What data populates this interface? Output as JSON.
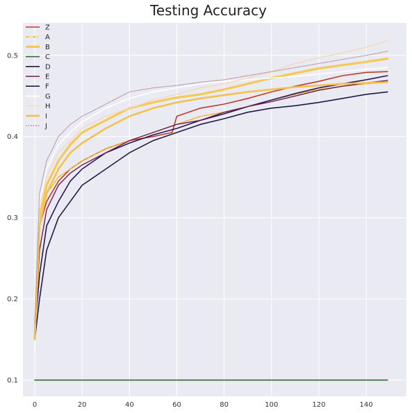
{
  "chart_data": {
    "type": "line",
    "title": "Testing Accuracy",
    "xlabel": "",
    "ylabel": "",
    "xlim": [
      -5,
      157
    ],
    "ylim": [
      0.08,
      0.54
    ],
    "xticks": [
      0,
      20,
      40,
      60,
      80,
      100,
      120,
      140
    ],
    "yticks": [
      0.1,
      0.2,
      0.3,
      0.4,
      0.5
    ],
    "grid": true,
    "legend_position": "top-left",
    "series": [
      {
        "name": "Z",
        "color": "#c0392b",
        "width": 1.6,
        "dash": "",
        "x": [
          0,
          2,
          5,
          10,
          15,
          20,
          30,
          40,
          50,
          58,
          60,
          70,
          80,
          90,
          100,
          110,
          120,
          130,
          140,
          149
        ],
        "y": [
          0.16,
          0.29,
          0.32,
          0.345,
          0.36,
          0.37,
          0.385,
          0.395,
          0.4,
          0.405,
          0.425,
          0.435,
          0.44,
          0.447,
          0.455,
          0.462,
          0.468,
          0.475,
          0.479,
          0.48
        ]
      },
      {
        "name": "A",
        "color": "#f0b429",
        "width": 1.6,
        "dash": "5,2,1,2",
        "x": [
          0,
          2,
          5,
          10,
          15,
          20,
          30,
          40,
          50,
          60,
          70,
          80,
          90,
          100,
          110,
          120,
          130,
          140,
          149
        ],
        "y": [
          0.15,
          0.3,
          0.33,
          0.35,
          0.36,
          0.37,
          0.385,
          0.395,
          0.405,
          0.415,
          0.425,
          0.43,
          0.437,
          0.445,
          0.452,
          0.458,
          0.462,
          0.465,
          0.467
        ]
      },
      {
        "name": "B",
        "color": "#f5c956",
        "width": 3.2,
        "dash": "",
        "x": [
          0,
          2,
          5,
          10,
          15,
          20,
          30,
          40,
          50,
          60,
          70,
          80,
          90,
          100,
          110,
          120,
          130,
          140,
          149
        ],
        "y": [
          0.15,
          0.3,
          0.34,
          0.37,
          0.39,
          0.405,
          0.42,
          0.435,
          0.442,
          0.448,
          0.452,
          0.458,
          0.465,
          0.472,
          0.478,
          0.484,
          0.488,
          0.492,
          0.496
        ]
      },
      {
        "name": "C",
        "color": "#2e6b35",
        "width": 1.6,
        "dash": "",
        "x": [
          0,
          149
        ],
        "y": [
          0.1,
          0.1
        ]
      },
      {
        "name": "D",
        "color": "#2a1458",
        "width": 1.6,
        "dash": "",
        "x": [
          0,
          2,
          5,
          10,
          15,
          20,
          30,
          40,
          50,
          60,
          70,
          80,
          90,
          100,
          110,
          120,
          130,
          140,
          149
        ],
        "y": [
          0.16,
          0.23,
          0.29,
          0.32,
          0.345,
          0.36,
          0.38,
          0.392,
          0.402,
          0.41,
          0.42,
          0.428,
          0.437,
          0.445,
          0.453,
          0.46,
          0.465,
          0.47,
          0.475
        ]
      },
      {
        "name": "E",
        "color": "#6b1f4a",
        "width": 1.4,
        "dash": "",
        "x": [
          0,
          2,
          5,
          10,
          15,
          20,
          30,
          40,
          50,
          60,
          70,
          80,
          90,
          100,
          110,
          120,
          130,
          140,
          149
        ],
        "y": [
          0.16,
          0.26,
          0.31,
          0.34,
          0.355,
          0.365,
          0.38,
          0.395,
          0.405,
          0.415,
          0.42,
          0.43,
          0.437,
          0.443,
          0.45,
          0.457,
          0.462,
          0.466,
          0.469
        ]
      },
      {
        "name": "F",
        "color": "#1d1a45",
        "width": 1.6,
        "dash": "",
        "x": [
          0,
          2,
          5,
          10,
          15,
          20,
          30,
          40,
          50,
          60,
          70,
          80,
          90,
          100,
          110,
          120,
          130,
          140,
          149
        ],
        "y": [
          0.15,
          0.2,
          0.26,
          0.3,
          0.32,
          0.34,
          0.36,
          0.38,
          0.395,
          0.405,
          0.415,
          0.422,
          0.43,
          0.435,
          0.438,
          0.442,
          0.447,
          0.452,
          0.455
        ]
      },
      {
        "name": "G",
        "color": "#ffffff",
        "width": 1.6,
        "dash": "",
        "x": [
          0,
          2,
          5,
          10,
          15,
          20,
          30,
          40,
          50,
          60,
          70,
          80,
          90,
          100,
          110,
          120,
          130,
          140,
          149
        ],
        "y": [
          0.14,
          0.32,
          0.36,
          0.39,
          0.405,
          0.418,
          0.435,
          0.447,
          0.455,
          0.46,
          0.465,
          0.468,
          0.47,
          0.472,
          0.474,
          0.477,
          0.48,
          0.483,
          0.485
        ]
      },
      {
        "name": "H",
        "color": "#f7d9bc",
        "width": 1.6,
        "dash": "",
        "x": [
          0,
          2,
          5,
          10,
          15,
          20,
          30,
          40,
          50,
          60,
          70,
          80,
          90,
          100,
          110,
          120,
          130,
          140,
          149
        ],
        "y": [
          0.16,
          0.31,
          0.35,
          0.38,
          0.395,
          0.41,
          0.425,
          0.435,
          0.445,
          0.452,
          0.46,
          0.465,
          0.472,
          0.48,
          0.49,
          0.497,
          0.503,
          0.51,
          0.518
        ]
      },
      {
        "name": "I",
        "color": "#f2c14e",
        "width": 2.6,
        "dash": "",
        "x": [
          0,
          2,
          5,
          10,
          15,
          20,
          30,
          40,
          50,
          60,
          70,
          80,
          90,
          100,
          110,
          120,
          130,
          140,
          149
        ],
        "y": [
          0.15,
          0.29,
          0.33,
          0.36,
          0.38,
          0.392,
          0.41,
          0.425,
          0.435,
          0.442,
          0.447,
          0.451,
          0.455,
          0.458,
          0.461,
          0.463,
          0.465,
          0.466,
          0.467
        ]
      },
      {
        "name": "J",
        "color": "#b89aa6",
        "width": 1.2,
        "dash": "2,1.5",
        "x": [
          0,
          2,
          5,
          10,
          15,
          20,
          30,
          40,
          50,
          60,
          70,
          80,
          90,
          100,
          110,
          120,
          130,
          140,
          149
        ],
        "y": [
          0.17,
          0.33,
          0.37,
          0.4,
          0.415,
          0.425,
          0.44,
          0.455,
          0.46,
          0.463,
          0.467,
          0.47,
          0.475,
          0.48,
          0.485,
          0.49,
          0.495,
          0.5,
          0.505
        ]
      }
    ]
  }
}
